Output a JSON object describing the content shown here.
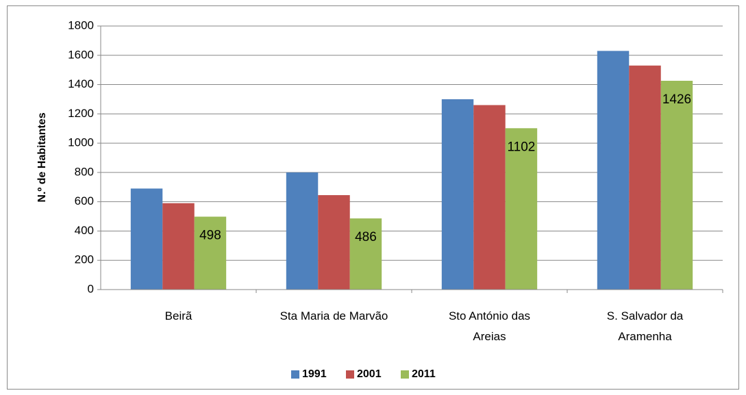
{
  "chart_data": {
    "type": "bar",
    "y_label": "N.º de Habitantes",
    "categories": [
      "Beirã",
      "Sta Maria de Marvão",
      "Sto António das Areias",
      "S. Salvador da Aramenha"
    ],
    "series": [
      {
        "name": "1991",
        "color": "#4f81bd",
        "values": [
          690,
          800,
          1300,
          1630
        ]
      },
      {
        "name": "2001",
        "color": "#c0504d",
        "values": [
          590,
          645,
          1260,
          1530
        ]
      },
      {
        "name": "2011",
        "color": "#9bbb59",
        "values": [
          498,
          486,
          1102,
          1426
        ],
        "show_labels": true
      }
    ],
    "ylim": [
      0,
      1800
    ],
    "yticks": [
      0,
      200,
      400,
      600,
      800,
      1000,
      1200,
      1400,
      1600,
      1800
    ],
    "grid": true,
    "legend": "bottom"
  }
}
